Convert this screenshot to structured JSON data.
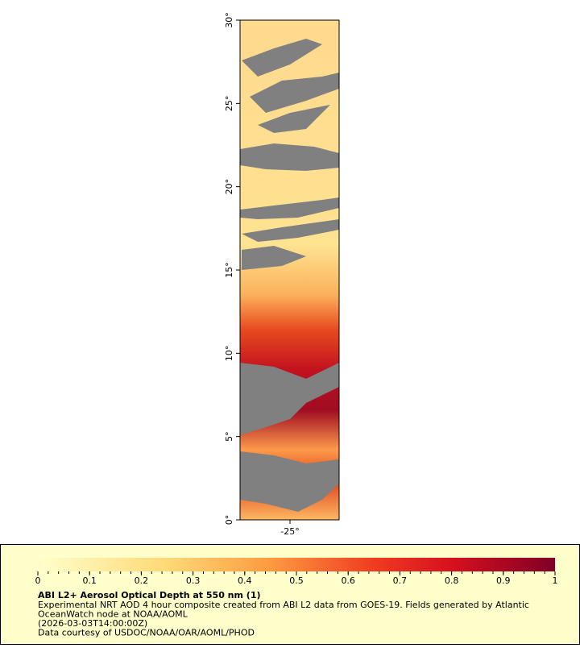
{
  "map": {
    "y_ticks": [
      {
        "value": 0,
        "label": "0°"
      },
      {
        "value": 5,
        "label": "5°"
      },
      {
        "value": 10,
        "label": "10°"
      },
      {
        "value": 15,
        "label": "15°"
      },
      {
        "value": 20,
        "label": "20°"
      },
      {
        "value": 25,
        "label": "25°"
      },
      {
        "value": 30,
        "label": "30°"
      }
    ],
    "x_tick_label": "-25°"
  },
  "legend": {
    "colorbar_ticks": [
      0,
      0.1,
      0.2,
      0.3,
      0.4,
      0.5,
      0.6,
      0.7,
      0.8,
      0.9,
      1
    ],
    "title": "ABI L2+ Aerosol Optical Depth at 550 nm (1)",
    "lines": [
      "Experimental NRT AOD 4 hour composite created from ABI L2 data from GOES-19. Fields generated by Atlantic",
      "OceanWatch node at NOAA/AOML",
      "(2026-03-03T14:00:00Z)",
      "Data courtesy of USDOC/NOAA/OAR/AOML/PHOD"
    ]
  }
}
